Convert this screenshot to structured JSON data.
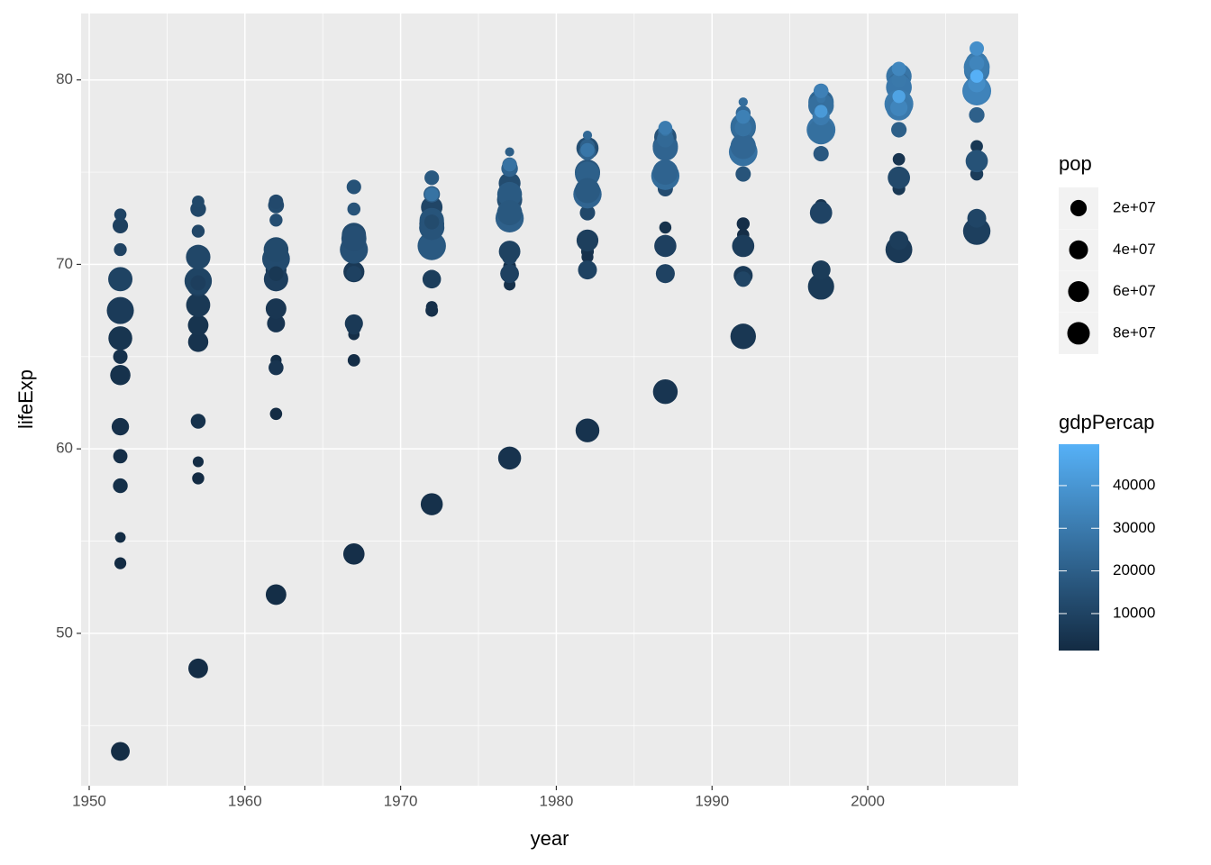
{
  "chart_data": {
    "type": "scatter",
    "x_label": "year",
    "y_label": "lifeExp",
    "xlim": [
      1949.48,
      2009.66
    ],
    "ylim": [
      41.74,
      83.6
    ],
    "xticks": [
      1950,
      1960,
      1970,
      1980,
      1990,
      2000
    ],
    "yticks": [
      50,
      60,
      70,
      80
    ],
    "grid": true,
    "size_title": "pop",
    "size_ticks": [
      {
        "value": 20000000.0,
        "label": "2e+07"
      },
      {
        "value": 40000000.0,
        "label": "4e+07"
      },
      {
        "value": 60000000.0,
        "label": "6e+07"
      },
      {
        "value": 80000000.0,
        "label": "8e+07"
      }
    ],
    "color_title": "gdpPercap",
    "color_low": "#132B43",
    "color_high": "#56B1F7",
    "color_lim": [
      1330,
      49700
    ],
    "color_ticks": [
      10000,
      20000,
      30000,
      40000
    ],
    "x": [
      1952,
      1952,
      1952,
      1952,
      1952,
      1952,
      1952,
      1952,
      1952,
      1952,
      1952,
      1952,
      1952,
      1952,
      1952,
      1957,
      1957,
      1957,
      1957,
      1957,
      1957,
      1957,
      1957,
      1957,
      1957,
      1957,
      1957,
      1957,
      1957,
      1957,
      1962,
      1962,
      1962,
      1962,
      1962,
      1962,
      1962,
      1962,
      1962,
      1962,
      1962,
      1962,
      1962,
      1962,
      1962,
      1967,
      1967,
      1967,
      1967,
      1967,
      1967,
      1967,
      1967,
      1967,
      1967,
      1967,
      1967,
      1967,
      1967,
      1972,
      1972,
      1972,
      1972,
      1972,
      1972,
      1972,
      1972,
      1972,
      1972,
      1972,
      1972,
      1972,
      1972,
      1972,
      1977,
      1977,
      1977,
      1977,
      1977,
      1977,
      1977,
      1977,
      1977,
      1977,
      1977,
      1977,
      1977,
      1977,
      1977,
      1982,
      1982,
      1982,
      1982,
      1982,
      1982,
      1982,
      1982,
      1982,
      1982,
      1982,
      1982,
      1982,
      1982,
      1982,
      1987,
      1987,
      1987,
      1987,
      1987,
      1987,
      1987,
      1987,
      1987,
      1987,
      1987,
      1987,
      1987,
      1987,
      1987,
      1992,
      1992,
      1992,
      1992,
      1992,
      1992,
      1992,
      1992,
      1992,
      1992,
      1992,
      1992,
      1992,
      1992,
      1992,
      1992,
      1997,
      1997,
      1997,
      1997,
      1997,
      1997,
      1997,
      1997,
      1997,
      1997,
      1997,
      1997,
      1997,
      1997,
      1997,
      1997,
      2002,
      2002,
      2002,
      2002,
      2002,
      2002,
      2002,
      2002,
      2002,
      2002,
      2002,
      2002,
      2002,
      2002,
      2002,
      2002,
      2007,
      2007,
      2007,
      2007,
      2007,
      2007,
      2007,
      2007,
      2007,
      2007,
      2007,
      2007,
      2007,
      2007,
      2007,
      2007
    ],
    "values": [
      43.6,
      53.8,
      55.2,
      58.0,
      59.6,
      61.2,
      64.0,
      65.0,
      66.0,
      67.4,
      67.5,
      69.2,
      70.8,
      72.1,
      72.7,
      48.1,
      58.4,
      59.3,
      61.5,
      65.8,
      66.7,
      67.9,
      67.8,
      68.9,
      69.1,
      70.4,
      71.8,
      73.0,
      73.4,
      69.0,
      52.1,
      61.9,
      64.8,
      64.4,
      66.8,
      67.6,
      69.7,
      69.2,
      70.5,
      70.3,
      70.8,
      69.5,
      72.4,
      73.2,
      73.4,
      54.3,
      64.8,
      66.2,
      66.6,
      66.8,
      69.6,
      71.1,
      71.4,
      71.6,
      70.8,
      71.4,
      69.5,
      73.0,
      74.2,
      57.0,
      67.5,
      67.7,
      69.3,
      69.2,
      70.9,
      72.2,
      73.1,
      72.4,
      71.0,
      72.0,
      72.3,
      73.8,
      74.7,
      73.8,
      59.5,
      69.9,
      68.9,
      70.4,
      69.5,
      70.7,
      73.5,
      74.4,
      73.8,
      72.5,
      72.8,
      75.2,
      75.4,
      76.1,
      75.4,
      61.0,
      70.7,
      70.4,
      72.8,
      69.7,
      71.3,
      75.0,
      76.3,
      74.9,
      73.8,
      74.0,
      76.1,
      76.4,
      77.0,
      76.2,
      63.1,
      71.1,
      72.0,
      74.1,
      69.5,
      71.0,
      76.4,
      76.9,
      76.3,
      74.8,
      75.0,
      76.8,
      77.2,
      77.2,
      77.4,
      66.1,
      72.2,
      71.6,
      74.9,
      69.4,
      71.0,
      77.4,
      77.6,
      77.5,
      76.1,
      76.4,
      77.4,
      78.2,
      78.8,
      78.0,
      69.2,
      68.8,
      73.2,
      73.0,
      76.0,
      69.7,
      72.8,
      78.8,
      78.8,
      78.6,
      77.3,
      77.2,
      78.0,
      79.4,
      79.0,
      78.3,
      79.4,
      70.8,
      74.1,
      75.7,
      77.3,
      71.3,
      74.7,
      80.2,
      79.8,
      79.6,
      78.7,
      78.5,
      78.5,
      80.0,
      80.5,
      79.1,
      80.6,
      71.8,
      74.9,
      76.4,
      78.1,
      72.5,
      75.6,
      80.5,
      80.9,
      80.7,
      79.4,
      79.4,
      79.8,
      80.9,
      81.8,
      80.2,
      81.7
    ],
    "sizes": [
      21800000.0,
      2800000.0,
      1300000.0,
      8500000.0,
      7300000.0,
      16600000.0,
      28500000.0,
      7700000.0,
      47700000.0,
      42500000.0,
      69100000.0,
      50400000.0,
      4300000.0,
      10400000.0,
      3300000.0,
      25700000.0,
      3100000.0,
      1500000.0,
      8800000.0,
      28200000.0,
      29800000.0,
      8100000.0,
      49200000.0,
      44300000.0,
      71000000.0,
      51400000.0,
      4500000.0,
      11000000.0,
      3500000.0,
      9500000.0,
      29800000.0,
      3300000.0,
      1700000.0,
      9000000.0,
      18700000.0,
      30300000.0,
      31200000.0,
      50800000.0,
      47100000.0,
      73700000.0,
      53300000.0,
      8400000.0,
      4600000.0,
      11800000.0,
      7600000.0,
      33400000.0,
      3600000.0,
      2000000.0,
      9100000.0,
      19300000.0,
      31800000.0,
      52700000.0,
      32900000.0,
      49800000.0,
      76400000.0,
      55000000.0,
      10200000.0,
      4800000.0,
      7900000.0,
      37500000.0,
      3800000.0,
      2300000.0,
      9000000.0,
      20700000.0,
      33000000.0,
      54400000.0,
      34500000.0,
      51700000.0,
      78700000.0,
      56100000.0,
      8900000.0,
      13300000.0,
      8100000.0,
      6400000.0,
      42400000.0,
      4100000.0,
      2500000.0,
      9700000.0,
      21700000.0,
      34600000.0,
      56100000.0,
      36400000.0,
      53200000.0,
      78200000.0,
      56200000.0,
      13900000.0,
      8300000.0,
      220000.0,
      6300000.0,
      47300000.0,
      4200000.0,
      2800000.0,
      9900000.0,
      22400000.0,
      36200000.0,
      56500000.0,
      38000000.0,
      54400000.0,
      78300000.0,
      56300000.0,
      14300000.0,
      8300000.0,
      230000.0,
      6500000.0,
      52900000.0,
      4300000.0,
      3100000.0,
      9900000.0,
      22700000.0,
      37700000.0,
      56700000.0,
      38900000.0,
      55600000.0,
      77700000.0,
      57000000.0,
      14700000.0,
      8400000.0,
      240000.0,
      6600000.0,
      58200000.0,
      4500000.0,
      3300000.0,
      9900000.0,
      22800000.0,
      38400000.0,
      56800000.0,
      39500000.0,
      57400000.0,
      80600000.0,
      57900000.0,
      15200000.0,
      8700000.0,
      260000.0,
      6900000.0,
      10300000.0,
      63000000.0,
      3600000.0,
      3400000.0,
      10200000.0,
      22600000.0,
      38700000.0,
      57500000.0,
      39900000.0,
      58600000.0,
      82000000.0,
      59000000.0,
      15600000.0,
      8900000.0,
      270000.0,
      4400000.0,
      7200000.0,
      67300000.0,
      4200000.0,
      3500000.0,
      10400000.0,
      22400000.0,
      38600000.0,
      57900000.0,
      40200000.0,
      59900000.0,
      82400000.0,
      59900000.0,
      16100000.0,
      9000000.0,
      290000.0,
      4500000.0,
      7400000.0,
      71200000.0,
      4600000.0,
      3600000.0,
      10600000.0,
      22300000.0,
      38500000.0,
      58100000.0,
      40400000.0,
      61100000.0,
      82400000.0,
      60800000.0,
      16600000.0,
      9000000.0,
      300000.0,
      4600000.0,
      7600000.0
    ],
    "color_values": [
      1970,
      1000,
      1600,
      3070,
      2440,
      3150,
      3830,
      3530,
      4930,
      7030,
      7140,
      9980,
      9690,
      8940,
      10100,
      2220,
      1350,
      1940,
      3780,
      4340,
      4570,
      4920,
      6250,
      8660,
      10190,
      11280,
      11100,
      11280,
      11650,
      8260,
      2320,
      1710,
      2310,
      4730,
      4730,
      5340,
      7100,
      8240,
      10560,
      12900,
      12480,
      6020,
      13580,
      12790,
      12330,
      2830,
      2170,
      2760,
      6360,
      6470,
      6560,
      10020,
      9700,
      13000,
      14750,
      14140,
      9330,
      15940,
      15260,
      3450,
      2860,
      3310,
      9020,
      8010,
      8010,
      12270,
      10640,
      16110,
      18020,
      15900,
      12730,
      18800,
      17830,
      27200,
      4270,
      3530,
      3530,
      10170,
      9360,
      9510,
      14260,
      13240,
      18290,
      20510,
      17430,
      21210,
      18860,
      19650,
      26980,
      4240,
      4130,
      3630,
      11750,
      9610,
      8450,
      16540,
      13930,
      20290,
      22030,
      18230,
      21400,
      20670,
      23270,
      28400,
      5090,
      4310,
      3740,
      13040,
      9700,
      9080,
      19210,
      15760,
      22070,
      24640,
      21660,
      23650,
      23590,
      26920,
      30280,
      5680,
      2550,
      2500,
      16210,
      6600,
      7740,
      22010,
      18600,
      24700,
      26510,
      22710,
      26790,
      23880,
      25140,
      31870,
      10540,
      6600,
      4770,
      3190,
      17640,
      7350,
      10160,
      24680,
      20450,
      25890,
      27790,
      26080,
      30250,
      25270,
      28060,
      41280,
      32140,
      6510,
      6020,
      4600,
      19970,
      7890,
      12000,
      27970,
      24840,
      28930,
      30040,
      29480,
      33730,
      29340,
      31160,
      44680,
      34480,
      8460,
      7450,
      5940,
      20510,
      10810,
      15390,
      28570,
      28820,
      30470,
      32170,
      33200,
      36800,
      33860,
      36180,
      49360,
      37510
    ]
  }
}
